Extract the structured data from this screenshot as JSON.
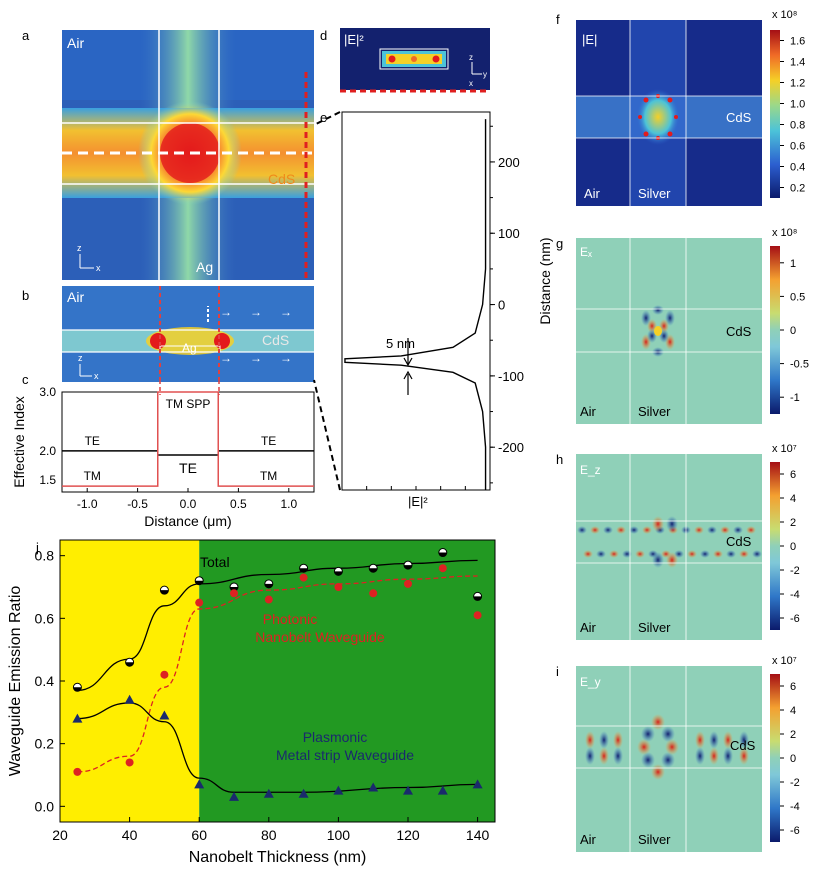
{
  "panels": {
    "a": {
      "letter": "a",
      "air": "Air",
      "cds": "CdS",
      "ag": "Ag",
      "axis_z": "z",
      "axis_x": "x"
    },
    "b": {
      "letter": "b",
      "air": "Air",
      "cds": "CdS",
      "ag": "Ag",
      "axis_z": "z",
      "axis_x": "x"
    },
    "c": {
      "letter": "c",
      "te_left": "TE",
      "te_right": "TE",
      "tm_left": "TM",
      "tm_right": "TM",
      "te_center": "TE",
      "tm_spp": "TM SPP"
    },
    "d": {
      "letter": "d",
      "label": "|E|²",
      "axis_z": "z",
      "axis_y": "y",
      "axis_x": "x"
    },
    "e": {
      "letter": "e",
      "gap": "5 nm",
      "bottom_label": "|E|²"
    },
    "f": {
      "letter": "f",
      "title": "|E|",
      "cds": "CdS",
      "air": "Air",
      "metal": "Silver",
      "scale": "x 10⁸",
      "ticks": [
        "1.6",
        "1.4",
        "1.2",
        "1.0",
        "0.8",
        "0.6",
        "0.4",
        "0.2"
      ]
    },
    "g": {
      "letter": "g",
      "title": "Eₓ",
      "cds": "CdS",
      "air": "Air",
      "metal": "Silver",
      "scale": "x 10⁸",
      "ticks": [
        "1",
        "0.5",
        "0",
        "-0.5",
        "-1"
      ]
    },
    "h": {
      "letter": "h",
      "title": "E_z",
      "cds": "CdS",
      "air": "Air",
      "metal": "Silver",
      "scale": "x 10⁷",
      "ticks": [
        "6",
        "4",
        "2",
        "0",
        "-2",
        "-4",
        "-6"
      ]
    },
    "i": {
      "letter": "i",
      "title": "E_y",
      "cds": "CdS",
      "air": "Air",
      "metal": "Silver",
      "scale": "x 10⁷",
      "ticks": [
        "6",
        "4",
        "2",
        "0",
        "-2",
        "-4",
        "-6"
      ]
    },
    "j": {
      "letter": "j"
    }
  },
  "chart_data": [
    {
      "panel": "c",
      "type": "line",
      "xlabel": "Distance (μm)",
      "ylabel": "Effective Index",
      "xlim": [
        -1.25,
        1.25
      ],
      "ylim": [
        1.3,
        3.0
      ],
      "xticks": [
        "-1.0",
        "-0.5",
        "0.0",
        "0.5",
        "1.0"
      ],
      "yticks": [
        "3.0",
        "2.0",
        "1.5"
      ],
      "series": [
        {
          "color": "#000000",
          "x": [
            -1.25,
            -0.3,
            -0.3,
            0.3,
            0.3,
            1.25
          ],
          "y": [
            2.0,
            2.0,
            1.93,
            1.93,
            2.0,
            2.0
          ]
        },
        {
          "color": "#e05050",
          "x": [
            -1.25,
            -0.3,
            -0.3,
            0.3,
            0.3,
            1.25
          ],
          "y": [
            1.4,
            1.4,
            3.0,
            3.0,
            1.4,
            1.4
          ]
        }
      ]
    },
    {
      "panel": "e",
      "type": "line",
      "ylabel": "Distance (nm)",
      "ylim": [
        -260,
        270
      ],
      "yticks": [
        "200",
        "100",
        "0",
        "-100",
        "-200"
      ],
      "series": [
        {
          "color": "#000000",
          "x": [
            0.97,
            0.97,
            0.95,
            0.9,
            0.75,
            0.4,
            0.02,
            0.02,
            0.4,
            0.75,
            0.9,
            0.95,
            0.97,
            0.97
          ],
          "y": [
            260,
            50,
            0,
            -40,
            -60,
            -72,
            -76,
            -81,
            -85,
            -95,
            -110,
            -150,
            -200,
            -260
          ]
        }
      ]
    },
    {
      "panel": "j",
      "type": "scatter",
      "xlabel": "Nanobelt Thickness (nm)",
      "ylabel": "Waveguide Emission Ratio",
      "xlim": [
        20,
        145
      ],
      "ylim": [
        -0.05,
        0.85
      ],
      "xticks": [
        "20",
        "40",
        "60",
        "80",
        "100",
        "120",
        "140"
      ],
      "yticks": [
        "0.0",
        "0.2",
        "0.4",
        "0.6",
        "0.8"
      ],
      "background": {
        "photonic_region_color": "#ffee00",
        "plasmonic_region_color": "#229922",
        "boundary_x": 60
      },
      "series": [
        {
          "name": "Total",
          "color": "#000000",
          "x": [
            25,
            40,
            50,
            60,
            70,
            80,
            90,
            100,
            110,
            120,
            130,
            140
          ],
          "y": [
            0.38,
            0.46,
            0.69,
            0.72,
            0.7,
            0.71,
            0.76,
            0.75,
            0.76,
            0.77,
            0.81,
            0.67
          ]
        },
        {
          "name": "Photonic Nanobelt Waveguide",
          "color": "#dd2222",
          "x": [
            25,
            40,
            50,
            60,
            70,
            80,
            90,
            100,
            110,
            120,
            130,
            140
          ],
          "y": [
            0.11,
            0.14,
            0.42,
            0.65,
            0.68,
            0.66,
            0.73,
            0.7,
            0.68,
            0.71,
            0.76,
            0.61
          ]
        },
        {
          "name": "Plasmonic Metal strip Waveguide",
          "color": "#1a2a6c",
          "x": [
            25,
            40,
            50,
            60,
            70,
            80,
            90,
            100,
            110,
            120,
            130,
            140
          ],
          "y": [
            0.28,
            0.34,
            0.29,
            0.07,
            0.03,
            0.04,
            0.04,
            0.05,
            0.06,
            0.05,
            0.05,
            0.07
          ]
        }
      ],
      "labels": {
        "total": "Total",
        "photonic": [
          "Photonic",
          "Nanobelt Waveguide"
        ],
        "plasmonic": [
          "Plasmonic",
          "Metal strip Waveguide"
        ]
      }
    }
  ]
}
